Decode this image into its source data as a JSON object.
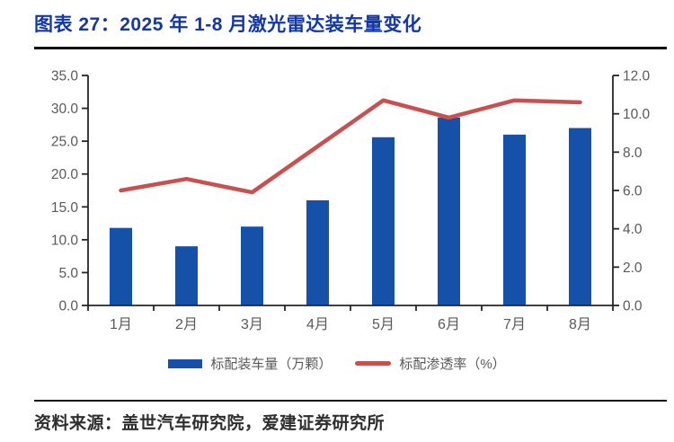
{
  "header": {
    "title": "图表 27：2025 年 1-8 月激光雷达装车量变化"
  },
  "footer": {
    "source": "资料来源：盖世汽车研究院，爱建证券研究所"
  },
  "colors": {
    "title": "#1238A8",
    "rule": "#121212",
    "bar": "#1551A8",
    "line": "#C8504E",
    "axis": "#262626",
    "tick_text": "#595959",
    "source_text": "#2E2E2E"
  },
  "chart_data": {
    "type": "bar",
    "subtype": "combo-bar-line",
    "categories": [
      "1月",
      "2月",
      "3月",
      "4月",
      "5月",
      "6月",
      "7月",
      "8月"
    ],
    "series": [
      {
        "name": "标配装车量（万颗）",
        "type": "bar",
        "axis": "left",
        "color": "#1551A8",
        "values": [
          11.8,
          9.0,
          12.0,
          16.0,
          25.6,
          28.6,
          26.0,
          27.0
        ]
      },
      {
        "name": "标配渗透率（%）",
        "type": "line",
        "axis": "right",
        "color": "#C8504E",
        "values": [
          6.0,
          6.6,
          5.9,
          8.3,
          10.7,
          9.8,
          10.7,
          10.6
        ]
      }
    ],
    "left_axis": {
      "min": 0,
      "max": 35,
      "step": 5,
      "tick_labels": [
        "0.0",
        "5.0",
        "10.0",
        "15.0",
        "20.0",
        "25.0",
        "30.0",
        "35.0"
      ]
    },
    "right_axis": {
      "min": 0,
      "max": 12,
      "step": 2,
      "tick_labels": [
        "0.0",
        "2.0",
        "4.0",
        "6.0",
        "8.0",
        "10.0",
        "12.0"
      ]
    },
    "grid": false,
    "legend_position": "bottom"
  }
}
